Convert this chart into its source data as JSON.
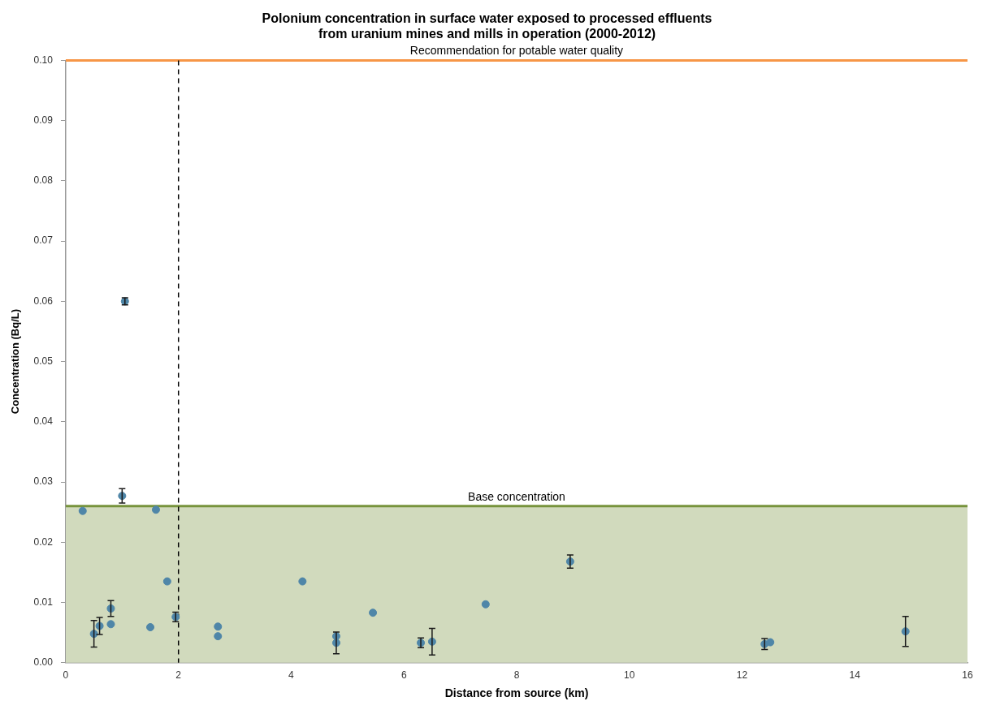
{
  "chart_data": {
    "type": "scatter",
    "title": "Polonium concentration in surface water exposed to processed effluents\nfrom uranium mines and mills in operation (2000-2012)",
    "xlabel": "Distance from source (km)",
    "ylabel": "Concentration (Bq/L)",
    "x": [
      0.3,
      0.5,
      0.6,
      0.8,
      0.8,
      1.0,
      1.05,
      1.5,
      1.6,
      1.8,
      1.95,
      2.7,
      2.7,
      4.2,
      4.8,
      4.8,
      5.45,
      6.3,
      6.5,
      7.45,
      8.95,
      12.4,
      12.5,
      14.9
    ],
    "series": [
      {
        "color": "#4f86a8",
        "values": [
          0.0252,
          0.0048,
          0.0061,
          0.009,
          0.0064,
          0.0277,
          0.06,
          0.0059,
          0.0254,
          0.0135,
          0.0076,
          0.006,
          0.0044,
          0.0135,
          0.0044,
          0.0033,
          0.0083,
          0.0033,
          0.0035,
          0.0097,
          0.0168,
          0.0031,
          0.0034,
          0.0052
        ],
        "errors": [
          null,
          0.0022,
          0.0014,
          0.0013,
          null,
          0.0012,
          0.0006,
          null,
          null,
          null,
          0.0008,
          null,
          null,
          null,
          null,
          0.0018,
          null,
          0.0008,
          0.0022,
          null,
          0.0011,
          0.0009,
          null,
          0.0025
        ]
      }
    ],
    "marker": "circle",
    "xlim": [
      0,
      16
    ],
    "xticks": [
      0,
      2,
      4,
      6,
      8,
      10,
      12,
      14,
      16
    ],
    "ylim": [
      0,
      0.1
    ],
    "yticks": [
      {
        "value": 0,
        "label": "0.00"
      },
      {
        "value": 0.01,
        "label": "0.01"
      },
      {
        "value": 0.02,
        "label": "0.02"
      },
      {
        "value": 0.03,
        "label": "0.03"
      },
      {
        "value": 0.04,
        "label": "0.04"
      },
      {
        "value": 0.05,
        "label": "0.05"
      },
      {
        "value": 0.06,
        "label": "0.06"
      },
      {
        "value": 0.07,
        "label": "0.07"
      },
      {
        "value": 0.08,
        "label": "0.08"
      },
      {
        "value": 0.09,
        "label": "0.09"
      },
      {
        "value": 0.1,
        "label": "0.10"
      }
    ],
    "bands": [
      {
        "axis": "y",
        "from": 0,
        "to": 0.026,
        "color": "#d1dabd"
      }
    ],
    "ref_lines": [
      {
        "axis": "y",
        "value": 0.026,
        "label": "Base concentration",
        "color": "#77933c",
        "line_style": "solid"
      },
      {
        "axis": "y",
        "value": 0.1,
        "label": "Recommendation for potable water quality",
        "color": "#f79646",
        "line_style": "solid"
      },
      {
        "axis": "x",
        "value": 2,
        "color": "#000000",
        "line_style": "dashed"
      }
    ],
    "grid": false,
    "legend": false
  }
}
